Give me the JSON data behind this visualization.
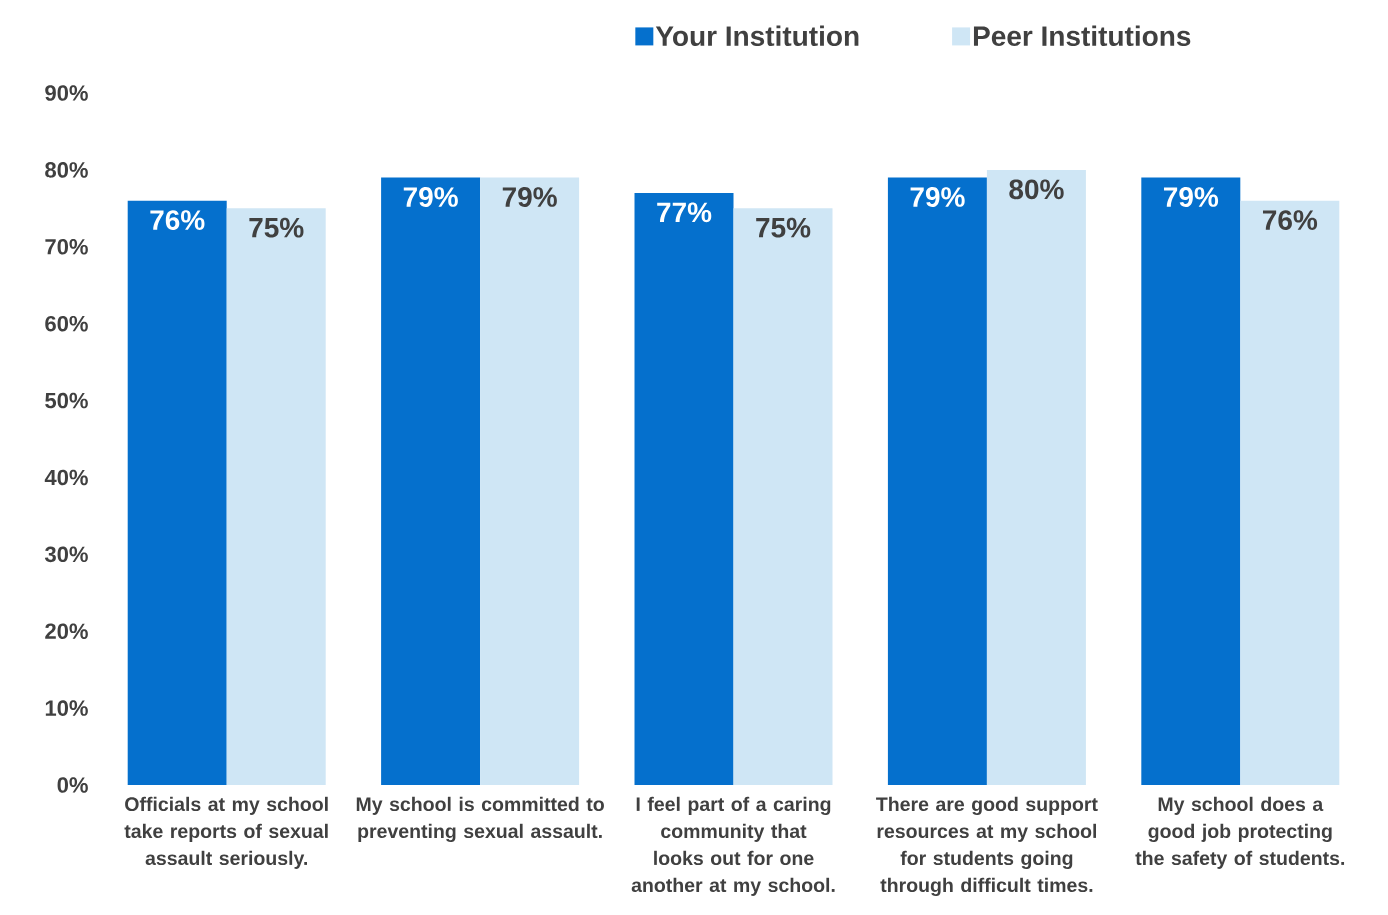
{
  "chart_data": {
    "type": "bar",
    "categories": [
      "Officials at my school take reports of sexual assault seriously.",
      "My school is committed to preventing sexual assault.",
      "I feel part of a caring community that looks out for one another at my school.",
      "There are good support resources at my school for students going through difficult times.",
      "My school does a good job protecting the safety of students."
    ],
    "series": [
      {
        "name": "Your Institution",
        "color": "#0570cd",
        "values": [
          76,
          79,
          77,
          79,
          79
        ],
        "value_labels": [
          "76%",
          "79%",
          "77%",
          "79%",
          "79%"
        ]
      },
      {
        "name": "Peer Institutions",
        "color": "#cfe6f5",
        "values": [
          75,
          79,
          75,
          80,
          76
        ],
        "value_labels": [
          "75%",
          "79%",
          "75%",
          "80%",
          "76%"
        ]
      }
    ],
    "ylim": [
      0,
      90
    ],
    "yticks": [
      {
        "value": 0,
        "label": "0%"
      },
      {
        "value": 10,
        "label": "10%"
      },
      {
        "value": 20,
        "label": "20%"
      },
      {
        "value": 30,
        "label": "30%"
      },
      {
        "value": 40,
        "label": "40%"
      },
      {
        "value": 50,
        "label": "50%"
      },
      {
        "value": 60,
        "label": "60%"
      },
      {
        "value": 70,
        "label": "70%"
      },
      {
        "value": 80,
        "label": "80%"
      },
      {
        "value": 90,
        "label": "90%"
      }
    ],
    "legend": "top right"
  }
}
